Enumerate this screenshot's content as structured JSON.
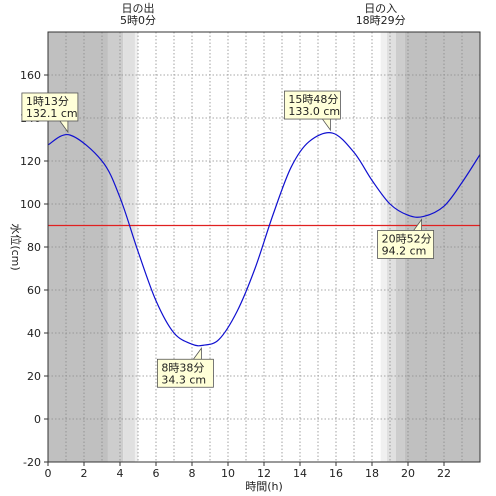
{
  "chart_data": {
    "type": "line",
    "xlabel": "時間(h)",
    "ylabel": "水位(cm)",
    "xlim": [
      0,
      24
    ],
    "ylim": [
      -20,
      180
    ],
    "x_ticks": [
      0,
      2,
      4,
      6,
      8,
      10,
      12,
      14,
      16,
      18,
      20,
      22
    ],
    "y_ticks": [
      -20,
      0,
      20,
      40,
      60,
      80,
      100,
      120,
      140,
      160
    ],
    "grid": true,
    "reference_line": {
      "y": 90,
      "color": "#e02020"
    },
    "series": [
      {
        "color": "#1010d0",
        "points": [
          [
            0,
            127.5
          ],
          [
            1.2167,
            132.1
          ],
          [
            3,
            120
          ],
          [
            4,
            103
          ],
          [
            5,
            78
          ],
          [
            6,
            55
          ],
          [
            7,
            40
          ],
          [
            8,
            34.8
          ],
          [
            8.6333,
            34.3
          ],
          [
            9.5,
            37
          ],
          [
            10.5,
            50
          ],
          [
            11.5,
            70
          ],
          [
            12.5,
            95
          ],
          [
            13.5,
            117
          ],
          [
            14.5,
            129
          ],
          [
            15.8,
            133.0
          ],
          [
            17,
            124
          ],
          [
            18,
            111
          ],
          [
            19,
            100
          ],
          [
            20,
            94.8
          ],
          [
            20.8667,
            94.2
          ],
          [
            22,
            99
          ],
          [
            23,
            110
          ],
          [
            24,
            123
          ]
        ]
      }
    ],
    "annotations": [
      {
        "x": 1.2167,
        "y": 132.1,
        "time": "1時13分",
        "level": "132.1 cm"
      },
      {
        "x": 8.6333,
        "y": 34.3,
        "time": "8時38分",
        "level": "34.3 cm"
      },
      {
        "x": 15.8,
        "y": 133.0,
        "time": "15時48分",
        "level": "133.0 cm"
      },
      {
        "x": 20.8667,
        "y": 94.2,
        "time": "20時52分",
        "level": "94.2 cm"
      }
    ],
    "sun": {
      "sunrise": {
        "label": "日の出",
        "time": "5時0分",
        "x": 5.0
      },
      "sunset": {
        "label": "日の入",
        "time": "18時29分",
        "x": 18.4833
      },
      "shading": [
        {
          "from": 0,
          "to": 3.33,
          "color": "#c0c0c0"
        },
        {
          "from": 3.33,
          "to": 4.17,
          "color": "#cdcdcd"
        },
        {
          "from": 4.17,
          "to": 4.83,
          "color": "#e0e0e0"
        },
        {
          "from": 4.83,
          "to": 5.0,
          "color": "#f0f0f0"
        },
        {
          "from": 18.48,
          "to": 18.83,
          "color": "#f0f0f0"
        },
        {
          "from": 18.83,
          "to": 19.33,
          "color": "#e0e0e0"
        },
        {
          "from": 19.33,
          "to": 19.83,
          "color": "#cdcdcd"
        },
        {
          "from": 19.83,
          "to": 24,
          "color": "#c0c0c0"
        }
      ]
    }
  }
}
